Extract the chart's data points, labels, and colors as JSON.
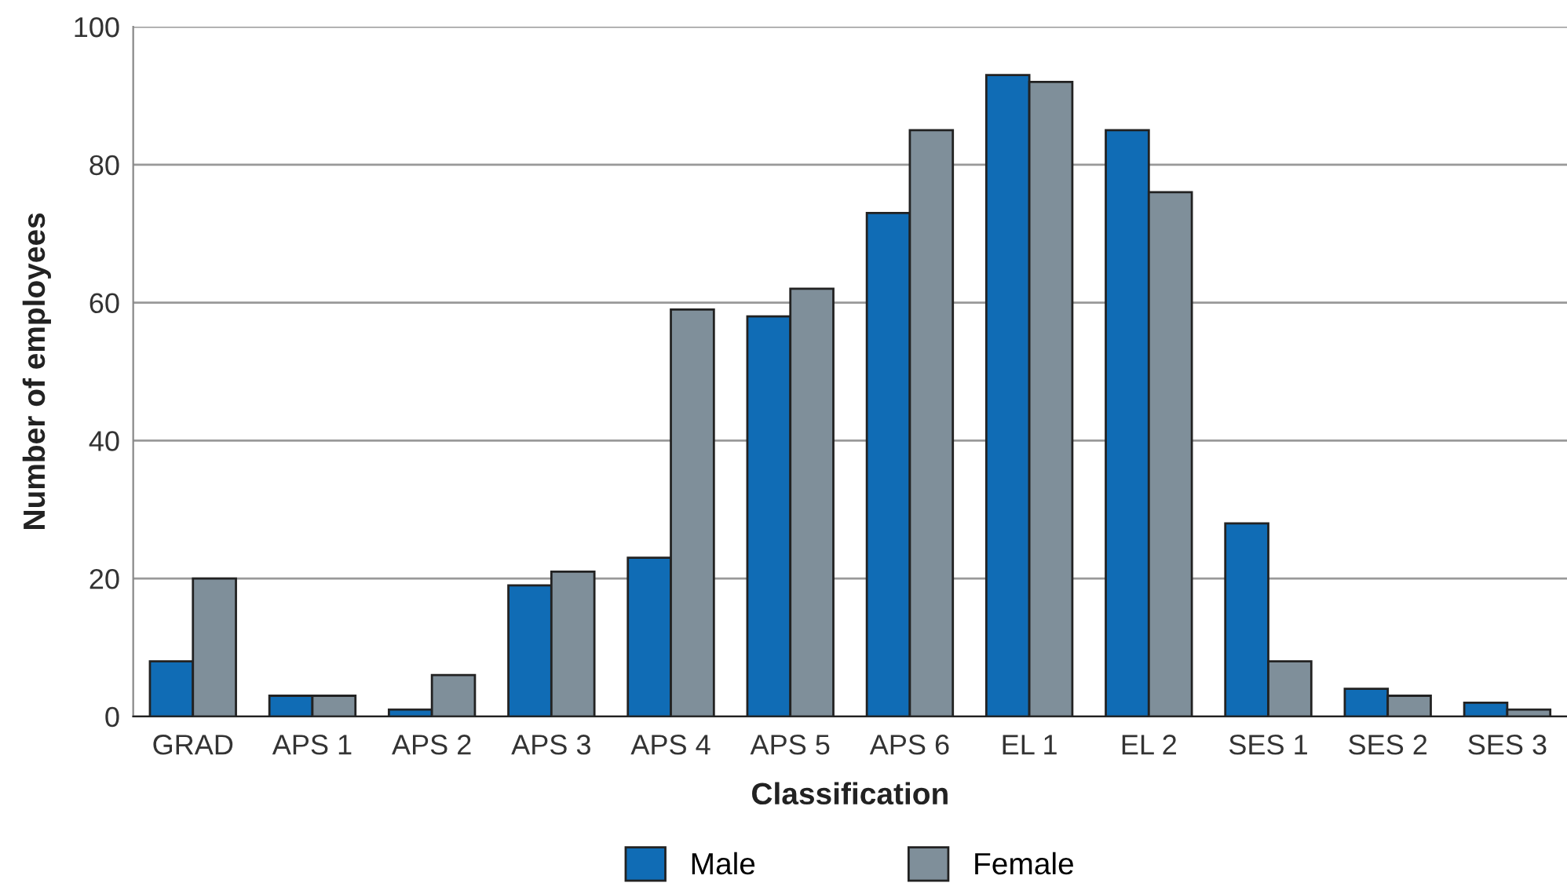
{
  "chart_data": {
    "type": "bar",
    "xlabel": "Classification",
    "ylabel": "Number of employees",
    "categories": [
      "GRAD",
      "APS 1",
      "APS 2",
      "APS 3",
      "APS 4",
      "APS 5",
      "APS 6",
      "EL 1",
      "EL 2",
      "SES 1",
      "SES 2",
      "SES 3"
    ],
    "series": [
      {
        "name": "Male",
        "color": "#106cb5",
        "values": [
          8,
          3,
          1,
          19,
          23,
          58,
          73,
          93,
          85,
          28,
          4,
          2
        ]
      },
      {
        "name": "Female",
        "color": "#7f8f9a",
        "values": [
          20,
          3,
          6,
          21,
          59,
          62,
          85,
          92,
          76,
          8,
          3,
          1
        ]
      }
    ],
    "ylim": [
      0,
      100
    ],
    "yticks": [
      0,
      20,
      40,
      60,
      80,
      100
    ],
    "grid": "y",
    "legend": "bottom"
  }
}
